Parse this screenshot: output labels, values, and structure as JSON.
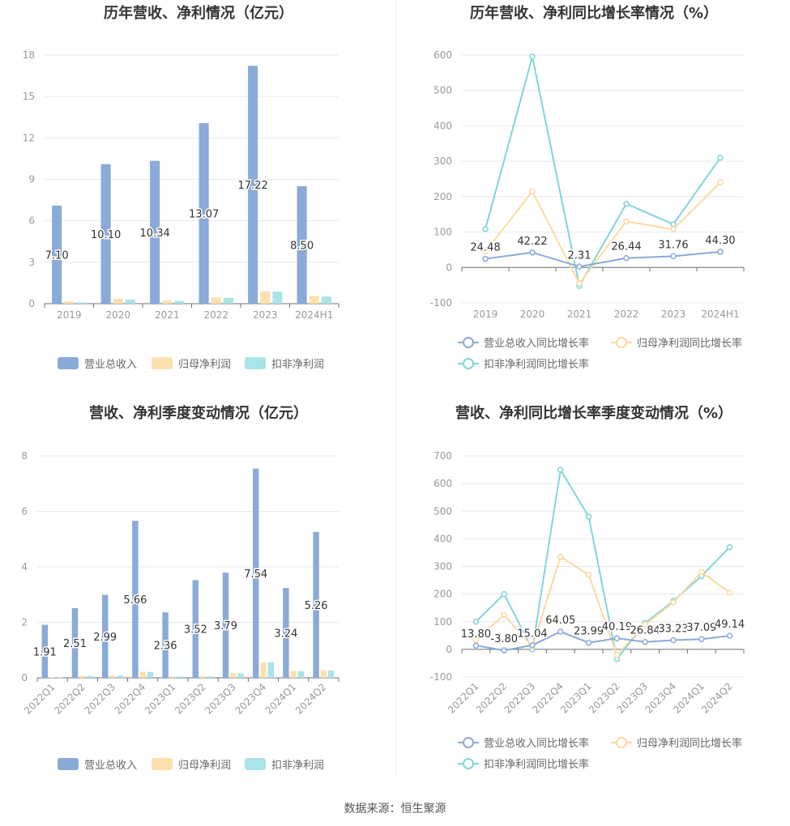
{
  "source_label": "数据来源：恒生聚源",
  "colors": {
    "revenue": "#8aaad8",
    "net_profit": "#fde0b0",
    "deducted_profit": "#a9e4e6",
    "revenue_line": "#8aaad8",
    "net_profit_line": "#fdd9a0",
    "deducted_line": "#7fd6d9",
    "grid": "#e6e8f2",
    "axis_text": "#999999",
    "title": "#333333"
  },
  "chart_data": [
    {
      "id": "annual-revenue",
      "type": "bar",
      "title": "历年营收、净利情况（亿元）",
      "categories": [
        "2019",
        "2020",
        "2021",
        "2022",
        "2023",
        "2024H1"
      ],
      "series": [
        {
          "name": "营业总收入",
          "values": [
            7.1,
            10.1,
            10.34,
            13.07,
            17.22,
            8.5
          ],
          "labels": [
            "7.10",
            "10.10",
            "10.34",
            "13.07",
            "17.22",
            "8.50"
          ]
        },
        {
          "name": "归母净利润",
          "values": [
            0.15,
            0.35,
            0.22,
            0.45,
            0.9,
            0.55
          ]
        },
        {
          "name": "扣非净利润",
          "values": [
            0.08,
            0.3,
            0.2,
            0.42,
            0.88,
            0.52
          ]
        }
      ],
      "yticks": [
        "0",
        "3",
        "6",
        "9",
        "12",
        "15",
        "18"
      ],
      "ylim": [
        0,
        18
      ]
    },
    {
      "id": "annual-growth",
      "type": "line",
      "title": "历年营收、净利同比增长率情况（%）",
      "categories": [
        "2019",
        "2020",
        "2021",
        "2022",
        "2023",
        "2024H1"
      ],
      "series": [
        {
          "name": "营业总收入同比增长率",
          "values": [
            24.48,
            42.22,
            2.31,
            26.44,
            31.76,
            44.3
          ],
          "labels": [
            "24.48",
            "42.22",
            "2.31",
            "26.44",
            "31.76",
            "44.30"
          ]
        },
        {
          "name": "归母净利润同比增长率",
          "values": [
            45,
            215,
            -45,
            130,
            108,
            240
          ]
        },
        {
          "name": "扣非净利润同比增长率",
          "values": [
            108,
            595,
            -52,
            180,
            122,
            310
          ]
        }
      ],
      "yticks": [
        "-100",
        "0",
        "100",
        "200",
        "300",
        "400",
        "500",
        "600"
      ],
      "ylim": [
        -100,
        600
      ]
    },
    {
      "id": "quarterly-revenue",
      "type": "bar",
      "title": "营收、净利季度变动情况（亿元）",
      "categories": [
        "2022Q1",
        "2022Q2",
        "2022Q3",
        "2022Q4",
        "2023Q1",
        "2023Q2",
        "2023Q3",
        "2023Q4",
        "2024Q1",
        "2024Q2"
      ],
      "series": [
        {
          "name": "营业总收入",
          "values": [
            1.91,
            2.51,
            2.99,
            5.66,
            2.36,
            3.52,
            3.79,
            7.54,
            3.24,
            5.26
          ],
          "labels": [
            "1.91",
            "2.51",
            "2.99",
            "5.66",
            "2.36",
            "3.52",
            "3.79",
            "7.54",
            "3.24",
            "5.26"
          ]
        },
        {
          "name": "归母净利润",
          "values": [
            0.02,
            0.08,
            0.09,
            0.22,
            0.06,
            0.07,
            0.17,
            0.55,
            0.25,
            0.27
          ]
        },
        {
          "name": "扣非净利润",
          "values": [
            0.01,
            0.07,
            0.08,
            0.21,
            0.05,
            0.05,
            0.16,
            0.56,
            0.24,
            0.26
          ]
        }
      ],
      "yticks": [
        "0",
        "2",
        "4",
        "6",
        "8"
      ],
      "ylim": [
        0,
        8
      ]
    },
    {
      "id": "quarterly-growth",
      "type": "line",
      "title": "营收、净利同比增长率季度变动情况（%）",
      "categories": [
        "2022Q1",
        "2022Q2",
        "2022Q3",
        "2022Q4",
        "2023Q1",
        "2023Q2",
        "2023Q3",
        "2023Q4",
        "2024Q1",
        "2024Q2"
      ],
      "series": [
        {
          "name": "营业总收入同比增长率",
          "values": [
            13.8,
            -3.8,
            15.04,
            64.05,
            23.99,
            40.19,
            26.84,
            33.23,
            37.09,
            49.14
          ],
          "labels": [
            "13.80",
            "-3.80",
            "15.04",
            "64.05",
            "23.99",
            "40.19",
            "26.84",
            "33.23",
            "37.09",
            "49.14"
          ]
        },
        {
          "name": "归母净利润同比增长率",
          "values": [
            35,
            125,
            10,
            335,
            270,
            -20,
            90,
            170,
            280,
            205
          ]
        },
        {
          "name": "扣非净利润同比增长率",
          "values": [
            100,
            200,
            0,
            650,
            480,
            -35,
            95,
            175,
            265,
            370
          ]
        }
      ],
      "yticks": [
        "-100",
        "0",
        "100",
        "200",
        "300",
        "400",
        "500",
        "600",
        "700"
      ],
      "ylim": [
        -100,
        700
      ]
    }
  ]
}
